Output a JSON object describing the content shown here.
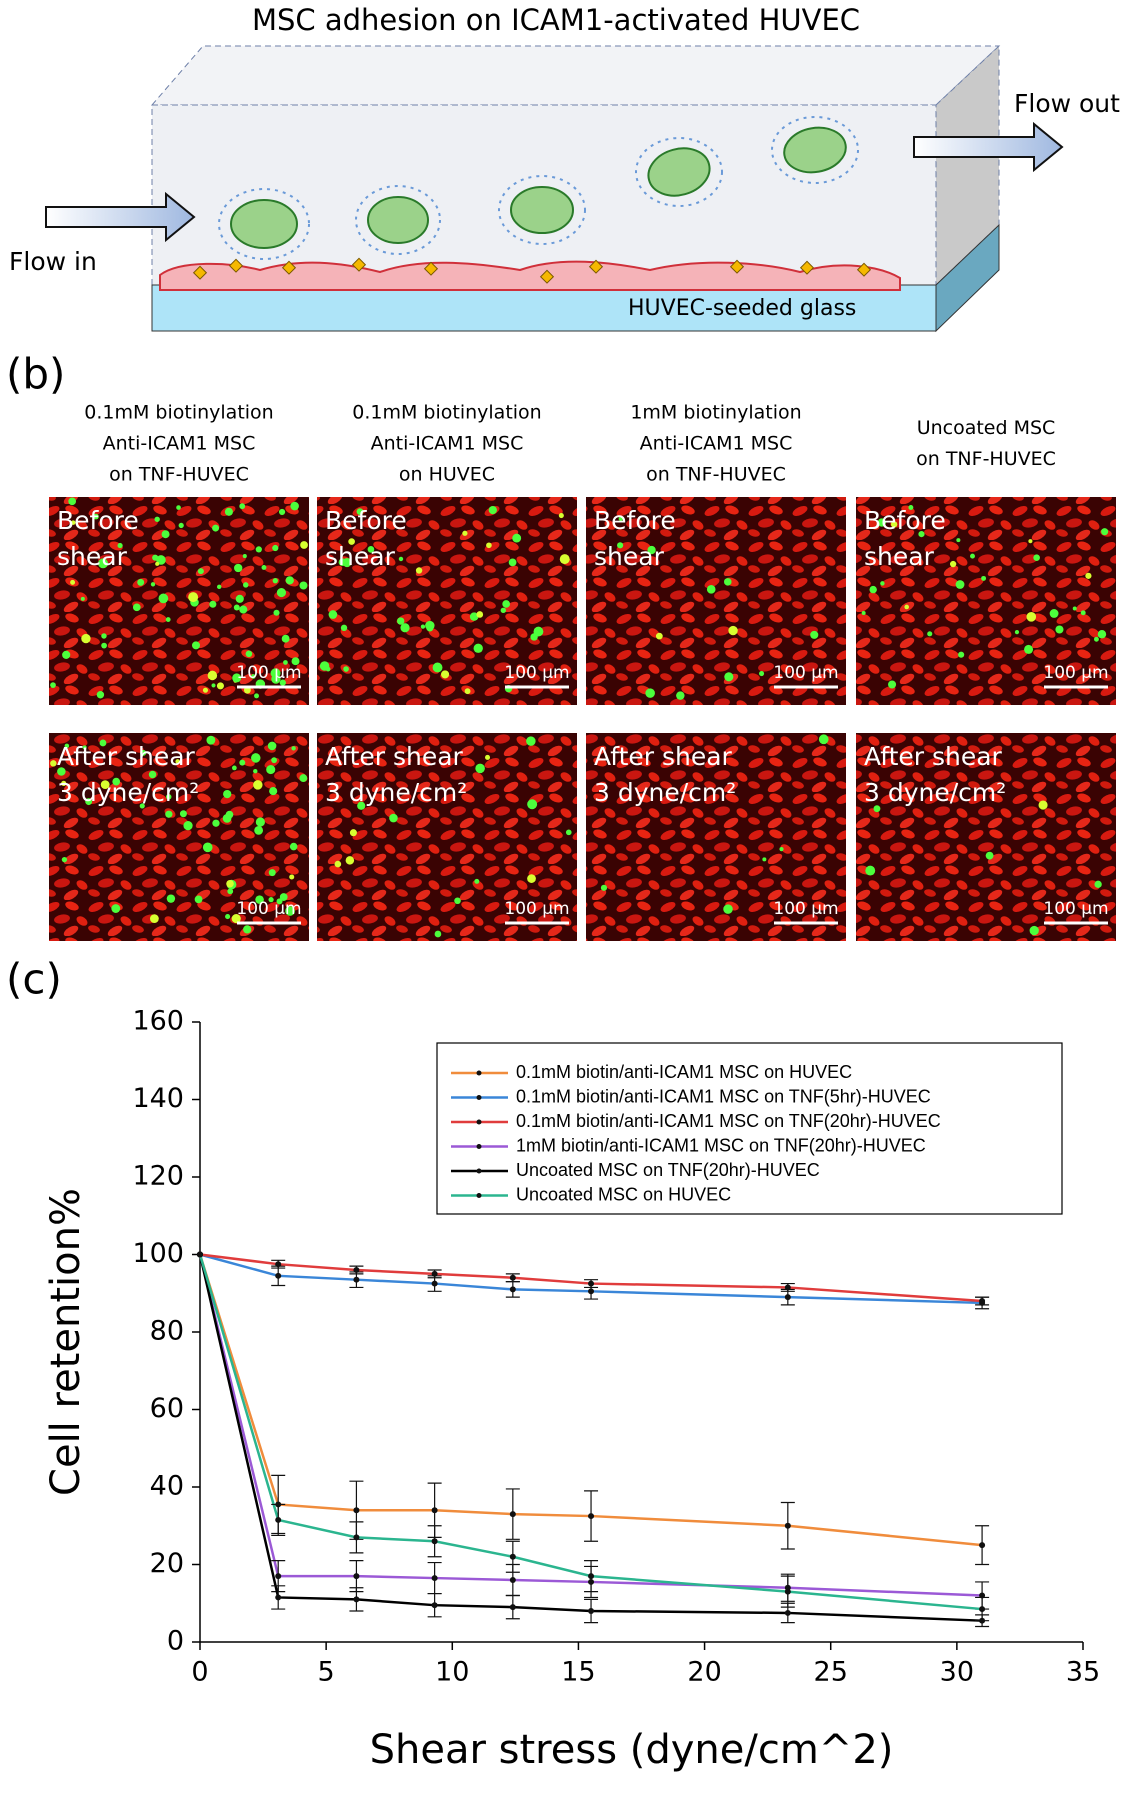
{
  "diagram": {
    "title": "MSC adhesion on ICAM1-activated HUVEC",
    "flow_in": "Flow in",
    "flow_out": "Flow out",
    "glass": "HUVEC-seeded glass"
  },
  "micrographs": {
    "label": "(b)",
    "columns": [
      [
        "0.1mM biotinylation",
        "Anti-ICAM1 MSC",
        "on TNF-HUVEC"
      ],
      [
        "0.1mM biotinylation",
        "Anti-ICAM1 MSC",
        "on HUVEC"
      ],
      [
        "1mM biotinylation",
        "Anti-ICAM1 MSC",
        "on TNF-HUVEC"
      ],
      [
        "Uncoated MSC",
        "on TNF-HUVEC"
      ]
    ],
    "rows": [
      [
        "Before",
        "shear"
      ],
      [
        "After shear",
        "3 dyne/cm²"
      ]
    ],
    "scale_bar": "100 µm"
  },
  "chart_data": {
    "type": "line",
    "panel_label": "(c)",
    "xlabel": "Shear stress (dyne/cm^2)",
    "ylabel": "Cell retention%",
    "x": [
      0,
      3.1,
      6.2,
      9.3,
      12.4,
      15.5,
      23.3,
      31
    ],
    "xlim": [
      0,
      35
    ],
    "xticks": [
      0,
      5,
      10,
      15,
      20,
      25,
      30,
      35
    ],
    "ylim": [
      0,
      160
    ],
    "yticks": [
      0,
      20,
      40,
      60,
      80,
      100,
      120,
      140,
      160
    ],
    "legend": "upper right",
    "series": [
      {
        "name": "0.1mM biotin/anti-ICAM1 MSC on HUVEC",
        "color": "#f08c3c",
        "values": [
          100,
          35.5,
          34,
          34,
          33,
          32.5,
          30,
          25
        ],
        "errors": [
          null,
          7.5,
          7.5,
          7,
          6.5,
          6.5,
          6,
          5
        ]
      },
      {
        "name": "0.1mM biotin/anti-ICAM1 MSC on TNF(5hr)-HUVEC",
        "color": "#3a86d8",
        "values": [
          100,
          94.5,
          93.5,
          92.5,
          91,
          90.5,
          89,
          87.5
        ],
        "errors": [
          null,
          2.5,
          2,
          2,
          2,
          2,
          2,
          1.5
        ]
      },
      {
        "name": "0.1mM biotin/anti-ICAM1 MSC on TNF(20hr)-HUVEC",
        "color": "#e03c3c",
        "values": [
          100,
          97.5,
          96,
          95,
          94,
          92.5,
          91.5,
          88
        ],
        "errors": [
          null,
          1,
          1,
          1,
          1,
          1,
          1,
          1
        ]
      },
      {
        "name": "1mM biotin/anti-ICAM1 MSC on TNF(20hr)-HUVEC",
        "color": "#9b59d6",
        "values": [
          100,
          17,
          17,
          16.5,
          16,
          15.5,
          14,
          12
        ],
        "errors": [
          null,
          4,
          4,
          4,
          4,
          4,
          3.5,
          3.5
        ]
      },
      {
        "name": "Uncoated MSC on TNF(20hr)-HUVEC",
        "color": "#000000",
        "values": [
          100,
          11.5,
          11,
          9.5,
          9,
          8,
          7.5,
          5.5
        ],
        "errors": [
          null,
          3,
          3,
          3,
          3,
          3,
          2.5,
          1.5
        ]
      },
      {
        "name": "Uncoated MSC on HUVEC",
        "color": "#2bb58f",
        "values": [
          100,
          31.5,
          27,
          26,
          22,
          17,
          13,
          8.5
        ],
        "errors": [
          null,
          4,
          4,
          4,
          4,
          4,
          4,
          3
        ]
      }
    ]
  }
}
